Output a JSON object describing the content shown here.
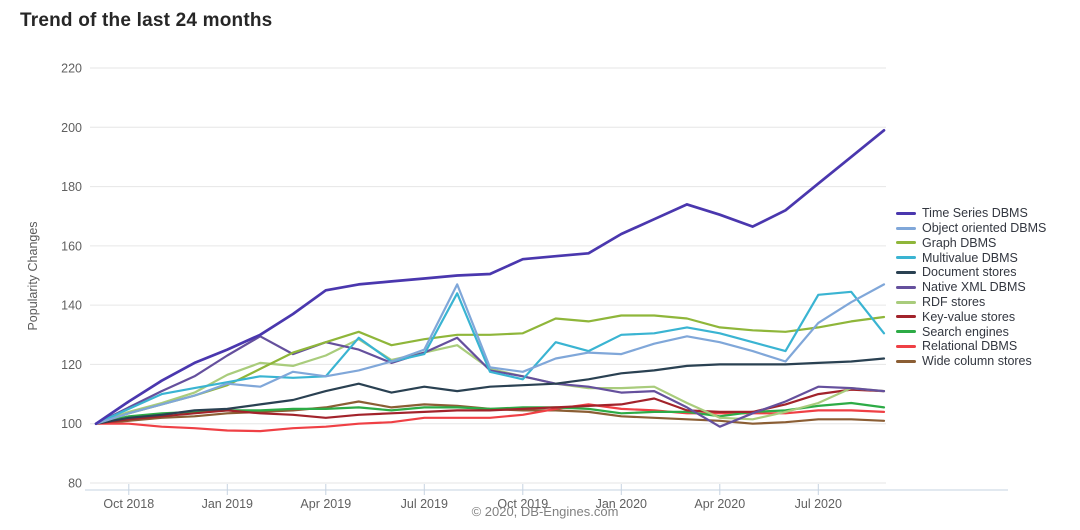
{
  "page": {
    "title": "Trend of the last 24 months",
    "copyright": "© 2020, DB-Engines.com"
  },
  "chart_data": {
    "type": "line",
    "title": "Trend of the last 24 months",
    "xlabel": "",
    "ylabel": "Popularity Changes",
    "ylim": [
      80,
      220
    ],
    "yticks": [
      80,
      100,
      120,
      140,
      160,
      180,
      200,
      220
    ],
    "grid": "horizontal",
    "legend_position": "right",
    "months": [
      "Sep 2018",
      "Oct 2018",
      "Nov 2018",
      "Dec 2018",
      "Jan 2019",
      "Feb 2019",
      "Mar 2019",
      "Apr 2019",
      "May 2019",
      "Jun 2019",
      "Jul 2019",
      "Aug 2019",
      "Sep 2019",
      "Oct 2019",
      "Nov 2019",
      "Dec 2019",
      "Jan 2020",
      "Feb 2020",
      "Mar 2020",
      "Apr 2020",
      "May 2020",
      "Jun 2020",
      "Jul 2020",
      "Aug 2020",
      "Sep 2020"
    ],
    "x_tick_labels": [
      "Oct 2018",
      "Jan 2019",
      "Apr 2019",
      "Jul 2019",
      "Oct 2019",
      "Jan 2020",
      "Apr 2020",
      "Jul 2020"
    ],
    "x_tick_month_index": [
      1,
      4,
      7,
      10,
      13,
      16,
      19,
      22
    ],
    "draw_order": [
      10,
      9,
      8,
      7,
      6,
      5,
      4,
      2,
      3,
      1,
      0
    ],
    "series": [
      {
        "name": "Time Series DBMS",
        "color": "#4a37ae",
        "values": [
          100,
          107.5,
          114.5,
          120.5,
          125,
          130,
          137,
          145,
          147,
          148,
          149,
          150,
          150.5,
          155.5,
          156.5,
          157.5,
          164,
          169,
          174,
          170.5,
          166.5,
          172,
          181,
          190,
          199
        ]
      },
      {
        "name": "Object oriented DBMS",
        "color": "#80a7d9",
        "values": [
          100,
          103.5,
          106.5,
          109.5,
          113.5,
          112.5,
          117.5,
          116,
          118,
          121,
          125,
          147,
          119,
          117.5,
          122,
          124,
          123.5,
          127,
          129.5,
          127.5,
          124.5,
          121,
          134,
          141,
          147
        ]
      },
      {
        "name": "Graph DBMS",
        "color": "#8fb63a",
        "values": [
          100,
          103.5,
          106.5,
          109.5,
          113,
          118.5,
          124,
          127.5,
          131,
          126.5,
          128.5,
          130,
          130,
          130.5,
          135.5,
          134.5,
          136.5,
          136.5,
          135.5,
          132.5,
          131.5,
          131,
          132.5,
          134.5,
          136
        ]
      },
      {
        "name": "Multivalue DBMS",
        "color": "#3ab4d2",
        "values": [
          100,
          105,
          110,
          112,
          114,
          116,
          115.5,
          116,
          129,
          121,
          123.5,
          144,
          117.5,
          115,
          127.5,
          124.5,
          130,
          130.5,
          132.5,
          130.5,
          127.5,
          124.5,
          143.5,
          144.5,
          130.5
        ]
      },
      {
        "name": "Document stores",
        "color": "#2a4152",
        "values": [
          100,
          102,
          103,
          104.5,
          105,
          106.5,
          108,
          111,
          113.5,
          110.5,
          112.5,
          111,
          112.5,
          113,
          113.5,
          115,
          117,
          118,
          119.5,
          120,
          120,
          120,
          120.5,
          121,
          122
        ]
      },
      {
        "name": "Native XML DBMS",
        "color": "#65509d",
        "values": [
          100,
          105.5,
          111,
          116,
          123,
          129.5,
          123.5,
          127.5,
          125,
          120.5,
          124,
          129,
          118,
          116,
          113.5,
          112.5,
          110.5,
          111,
          105.5,
          99,
          103.5,
          107.5,
          112.5,
          112,
          111
        ]
      },
      {
        "name": "RDF stores",
        "color": "#a9cc7c",
        "values": [
          100,
          104,
          107,
          110.5,
          116.5,
          120.5,
          119.5,
          123,
          128.5,
          121.5,
          124,
          126.5,
          118.5,
          116,
          113.5,
          112,
          112,
          112.5,
          107,
          102,
          101.5,
          104,
          107,
          112,
          111
        ]
      },
      {
        "name": "Key-value stores",
        "color": "#a2232b",
        "values": [
          100,
          101.5,
          102.5,
          103.5,
          104.5,
          103.5,
          103,
          102,
          103,
          103.5,
          104,
          104.5,
          104.5,
          105,
          105.5,
          106,
          106.5,
          108.5,
          104.5,
          104,
          104,
          106.5,
          110,
          111.5,
          111
        ]
      },
      {
        "name": "Search engines",
        "color": "#2dab46",
        "values": [
          100,
          102.5,
          103.5,
          104,
          104.5,
          104.5,
          105,
          105,
          105.5,
          104.5,
          105.5,
          105.5,
          105,
          105.5,
          105.5,
          105,
          103.5,
          104,
          104,
          102.5,
          104,
          104.5,
          106,
          107,
          105.5
        ]
      },
      {
        "name": "Relational DBMS",
        "color": "#ef4045",
        "values": [
          100,
          100,
          99,
          98.5,
          97.7,
          97.5,
          98.5,
          99,
          100,
          100.5,
          102,
          102,
          102,
          103,
          105,
          106.5,
          105,
          104.5,
          103.5,
          103.5,
          103.5,
          103.5,
          104.5,
          104.5,
          104
        ]
      },
      {
        "name": "Wide column stores",
        "color": "#8b5e34",
        "values": [
          100,
          101,
          102,
          102.5,
          103.5,
          104,
          104.5,
          105.5,
          107.5,
          105.5,
          106.5,
          106,
          105,
          104.5,
          104.5,
          104,
          102.5,
          102,
          101.5,
          101,
          100,
          100.5,
          101.5,
          101.5,
          101
        ]
      }
    ]
  }
}
